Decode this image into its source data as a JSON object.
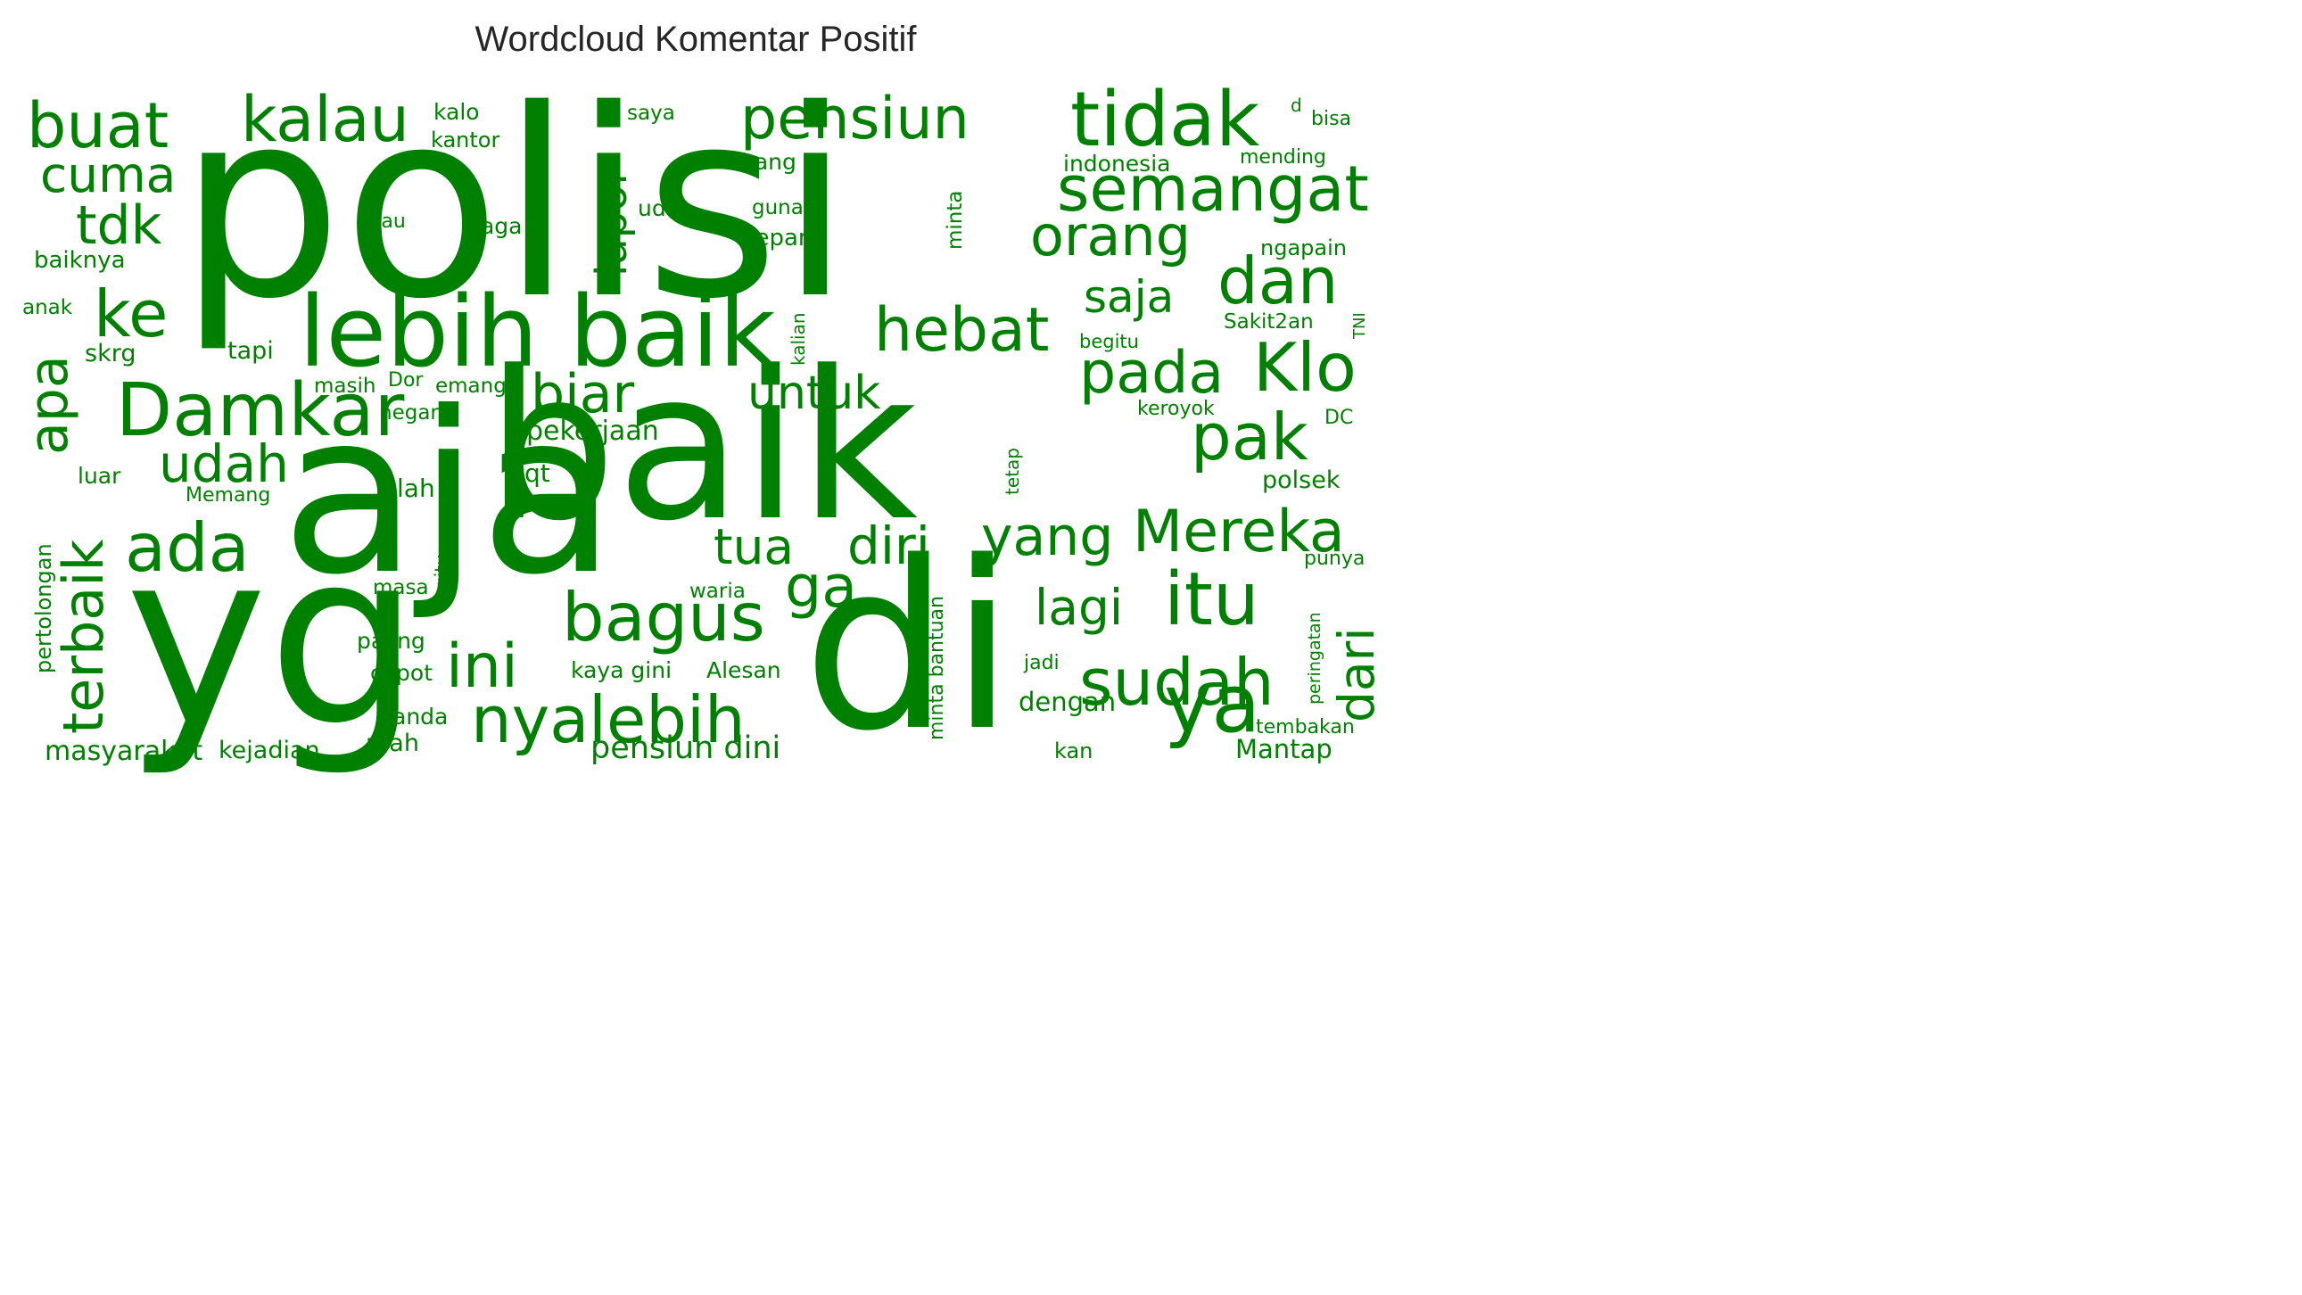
{
  "title": "Wordcloud Komentar Positif",
  "colors": {
    "word": "#008000",
    "title": "#262626",
    "background": "#ffffff"
  },
  "words": [
    {
      "text": "polisi",
      "rot": 0
    },
    {
      "text": "aja",
      "rot": 0
    },
    {
      "text": "baik",
      "rot": 0
    },
    {
      "text": "yg",
      "rot": 0
    },
    {
      "text": "di",
      "rot": 0
    },
    {
      "text": "lebih baik",
      "rot": 0
    },
    {
      "text": "tidak",
      "rot": 0
    },
    {
      "text": "pensiun",
      "rot": 0
    },
    {
      "text": "kalau",
      "rot": 0
    },
    {
      "text": "buat",
      "rot": 0
    },
    {
      "text": "semangat",
      "rot": 0
    },
    {
      "text": "orang",
      "rot": 0
    },
    {
      "text": "Damkar",
      "rot": 0
    },
    {
      "text": "Klo",
      "rot": 0
    },
    {
      "text": "dan",
      "rot": 0
    },
    {
      "text": "pada",
      "rot": 0
    },
    {
      "text": "pak",
      "rot": 0
    },
    {
      "text": "Mereka",
      "rot": 0
    },
    {
      "text": "sudah",
      "rot": 0
    },
    {
      "text": "itu",
      "rot": 0
    },
    {
      "text": "ya",
      "rot": 0
    },
    {
      "text": "nya",
      "rot": 0
    },
    {
      "text": "lebih",
      "rot": 0
    },
    {
      "text": "ini",
      "rot": 0
    },
    {
      "text": "bagus",
      "rot": 0
    },
    {
      "text": "ga",
      "rot": 0
    },
    {
      "text": "yang",
      "rot": 0
    },
    {
      "text": "diri",
      "rot": 0
    },
    {
      "text": "tua",
      "rot": 0
    },
    {
      "text": "ada",
      "rot": 0
    },
    {
      "text": "udah",
      "rot": 0
    },
    {
      "text": "biar",
      "rot": 0
    },
    {
      "text": "untuk",
      "rot": 0
    },
    {
      "text": "hebat",
      "rot": 0
    },
    {
      "text": "ke",
      "rot": 0
    },
    {
      "text": "tdk",
      "rot": 0
    },
    {
      "text": "cuma",
      "rot": 0
    },
    {
      "text": "apa",
      "rot": -90
    },
    {
      "text": "terbaik",
      "rot": -90
    },
    {
      "text": "lapor",
      "rot": -90
    },
    {
      "text": "saja",
      "rot": 0
    },
    {
      "text": "lagi",
      "rot": 0
    },
    {
      "text": "dari",
      "rot": -90
    },
    {
      "text": "pensiun dini",
      "rot": 0
    },
    {
      "text": "masyarakat",
      "rot": 0
    },
    {
      "text": "kejadian",
      "rot": 0
    },
    {
      "text": "mah",
      "rot": 0
    },
    {
      "text": "anda",
      "rot": 0
    },
    {
      "text": "copot",
      "rot": 0
    },
    {
      "text": "paling",
      "rot": 0
    },
    {
      "text": "masa",
      "rot": 0
    },
    {
      "text": "kaya gini",
      "rot": 0
    },
    {
      "text": "Alesan",
      "rot": 0
    },
    {
      "text": "waria",
      "rot": 0
    },
    {
      "text": "lah",
      "rot": 0
    },
    {
      "text": "qt",
      "rot": 0
    },
    {
      "text": "pekerjaan",
      "rot": 0
    },
    {
      "text": "negara",
      "rot": 0
    },
    {
      "text": "masih",
      "rot": 0
    },
    {
      "text": "Dor",
      "rot": 0
    },
    {
      "text": "emang",
      "rot": 0
    },
    {
      "text": "Memang",
      "rot": 0
    },
    {
      "text": "luar",
      "rot": 0
    },
    {
      "text": "skrg",
      "rot": 0
    },
    {
      "text": "tapi",
      "rot": 0
    },
    {
      "text": "anak",
      "rot": 0
    },
    {
      "text": "baiknya",
      "rot": 0
    },
    {
      "text": "kau",
      "rot": 0
    },
    {
      "text": "jaga",
      "rot": 0
    },
    {
      "text": "kalo",
      "rot": 0
    },
    {
      "text": "kantor",
      "rot": 0
    },
    {
      "text": "saya",
      "rot": 0
    },
    {
      "text": "uang",
      "rot": 0
    },
    {
      "text": "udh",
      "rot": 0
    },
    {
      "text": "guna",
      "rot": 0
    },
    {
      "text": "depan",
      "rot": 0
    },
    {
      "text": "minta",
      "rot": -90
    },
    {
      "text": "kalian",
      "rot": -90
    },
    {
      "text": "indonesia",
      "rot": 0
    },
    {
      "text": "mending",
      "rot": 0
    },
    {
      "text": "d",
      "rot": 0
    },
    {
      "text": "bisa",
      "rot": 0
    },
    {
      "text": "ngapain",
      "rot": 0
    },
    {
      "text": "Sakit2an",
      "rot": 0
    },
    {
      "text": "TNI",
      "rot": -90
    },
    {
      "text": "begitu",
      "rot": 0
    },
    {
      "text": "keroyok",
      "rot": 0
    },
    {
      "text": "DC",
      "rot": 0
    },
    {
      "text": "polsek",
      "rot": 0
    },
    {
      "text": "punya",
      "rot": 0
    },
    {
      "text": "tetap",
      "rot": -90
    },
    {
      "text": "jadi",
      "rot": 0
    },
    {
      "text": "dengan",
      "rot": 0
    },
    {
      "text": "kan",
      "rot": 0
    },
    {
      "text": "Mantap",
      "rot": 0
    },
    {
      "text": "tembakan",
      "rot": 0
    },
    {
      "text": "peringatan",
      "rot": -90
    },
    {
      "text": "minta bantuan",
      "rot": -90
    },
    {
      "text": "gitu",
      "rot": -90
    },
    {
      "text": "pertolongan",
      "rot": -90
    }
  ]
}
